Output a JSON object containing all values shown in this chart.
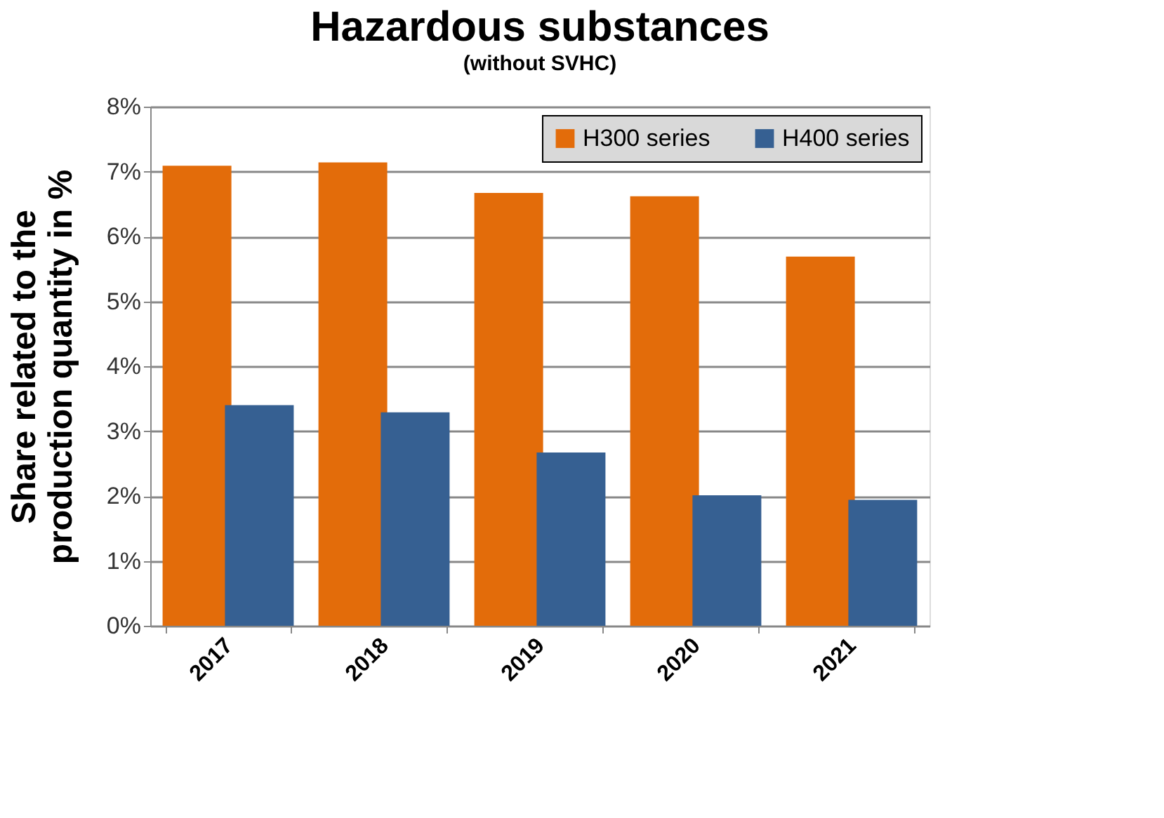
{
  "chart_data": {
    "type": "bar",
    "title": "Hazardous substances",
    "subtitle": "(without SVHC)",
    "ylabel": "Share related to the production quantity in %",
    "categories": [
      "2017",
      "2018",
      "2019",
      "2020",
      "2021"
    ],
    "series": [
      {
        "name": "H300 series",
        "color": "#e36c0a",
        "values": [
          7.09,
          7.14,
          6.67,
          6.62,
          5.69
        ]
      },
      {
        "name": "H400 series",
        "color": "#366092",
        "values": [
          3.4,
          3.29,
          2.67,
          2.01,
          1.94
        ]
      }
    ],
    "ylim": [
      0,
      8
    ],
    "yticks": [
      {
        "value": 0,
        "label": "0%"
      },
      {
        "value": 1,
        "label": "1%"
      },
      {
        "value": 2,
        "label": "2%"
      },
      {
        "value": 3,
        "label": "3%"
      },
      {
        "value": 4,
        "label": "4%"
      },
      {
        "value": 5,
        "label": "5%"
      },
      {
        "value": 6,
        "label": "6%"
      },
      {
        "value": 7,
        "label": "7%"
      },
      {
        "value": 8,
        "label": "8%"
      }
    ],
    "grid": "y",
    "legend": "top right"
  }
}
